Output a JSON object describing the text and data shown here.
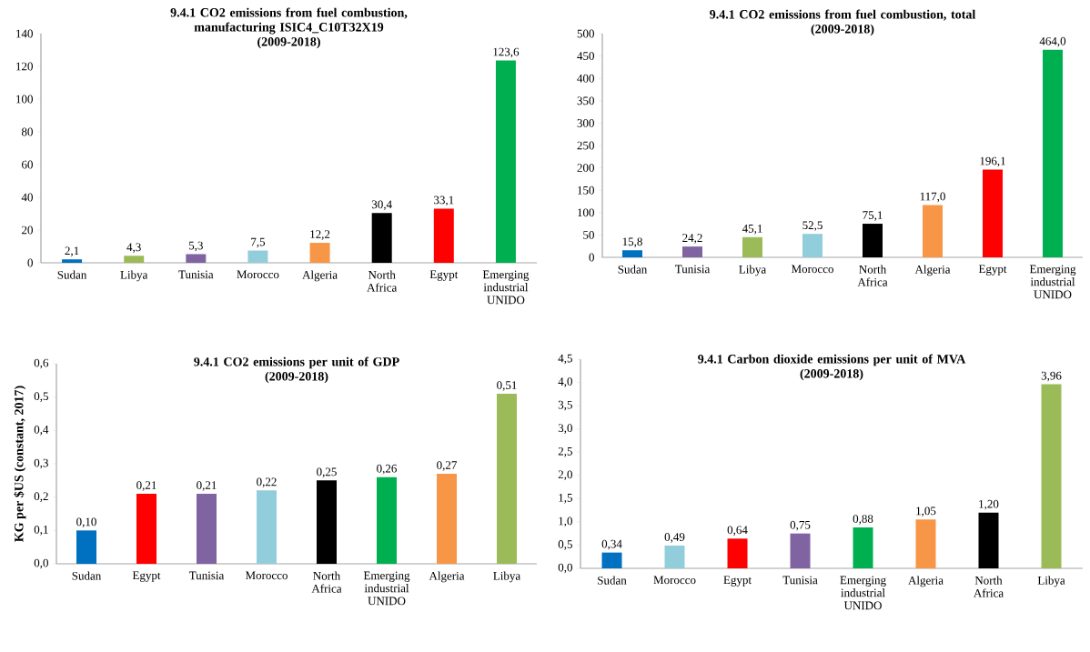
{
  "chart_data": [
    {
      "type": "bar",
      "title": "9.4.1 CO2 emissions from fuel combustion, manufacturing ISIC4_C10T32X19",
      "subtitle": "(2009-2018)",
      "categories": [
        "Sudan",
        "Libya",
        "Tunisia",
        "Morocco",
        "Algeria",
        "North Africa",
        "Egypt",
        "Emerging industrial UNIDO"
      ],
      "values": [
        2.1,
        4.3,
        5.3,
        7.5,
        12.2,
        30.4,
        33.1,
        123.6
      ],
      "value_labels": [
        "2,1",
        "4,3",
        "5,3",
        "7,5",
        "12,2",
        "30,4",
        "33,1",
        "123,6"
      ],
      "colors": [
        "#0070c0",
        "#9bbb59",
        "#8064a2",
        "#92cddc",
        "#f79646",
        "#000000",
        "#ff0000",
        "#00b050"
      ],
      "ylim": [
        0,
        140
      ],
      "yticks": [
        0,
        20,
        40,
        60,
        80,
        100,
        120,
        140
      ]
    },
    {
      "type": "bar",
      "title": "9.4.1 CO2 emissions from fuel combustion, total",
      "subtitle": "(2009-2018)",
      "categories": [
        "Sudan",
        "Tunisia",
        "Libya",
        "Morocco",
        "North Africa",
        "Algeria",
        "Egypt",
        "Emerging industrial UNIDO"
      ],
      "values": [
        15.8,
        24.2,
        45.1,
        52.5,
        75.1,
        117.0,
        196.1,
        464.0
      ],
      "value_labels": [
        "15,8",
        "24,2",
        "45,1",
        "52,5",
        "75,1",
        "117,0",
        "196,1",
        "464,0"
      ],
      "colors": [
        "#0070c0",
        "#8064a2",
        "#9bbb59",
        "#92cddc",
        "#000000",
        "#f79646",
        "#ff0000",
        "#00b050"
      ],
      "ylim": [
        0,
        500
      ],
      "yticks": [
        0,
        50,
        100,
        150,
        200,
        250,
        300,
        350,
        400,
        450,
        500
      ]
    },
    {
      "type": "bar",
      "title": "9.4.1 CO2 emissions per unit of GDP",
      "subtitle": "(2009-2018)",
      "ylabel": "KG per $US (constant, 2017)",
      "categories": [
        "Sudan",
        "Egypt",
        "Tunisia",
        "Morocco",
        "North Africa",
        "Emerging industrial UNIDO",
        "Algeria",
        "Libya"
      ],
      "values": [
        0.1,
        0.21,
        0.21,
        0.22,
        0.25,
        0.26,
        0.27,
        0.51
      ],
      "value_labels": [
        "0,10",
        "0,21",
        "0,21",
        "0,22",
        "0,25",
        "0,26",
        "0,27",
        "0,51"
      ],
      "colors": [
        "#0070c0",
        "#ff0000",
        "#8064a2",
        "#92cddc",
        "#000000",
        "#00b050",
        "#f79646",
        "#9bbb59"
      ],
      "ylim": [
        0,
        0.6
      ],
      "yticks": [
        {
          "value": 0,
          "label": "0,0"
        },
        {
          "value": 0.1,
          "label": "0,1"
        },
        {
          "value": 0.2,
          "label": "0,2"
        },
        {
          "value": 0.3,
          "label": "0,3"
        },
        {
          "value": 0.4,
          "label": "0,4"
        },
        {
          "value": 0.5,
          "label": "0,5"
        },
        {
          "value": 0.6,
          "label": "0,6"
        }
      ]
    },
    {
      "type": "bar",
      "title": "9.4.1 Carbon dioxide emissions per unit of MVA",
      "subtitle": "(2009-2018)",
      "categories": [
        "Sudan",
        "Morocco",
        "Egypt",
        "Tunisia",
        "Emerging industrial UNIDO",
        "Algeria",
        "North Africa",
        "Libya"
      ],
      "values": [
        0.34,
        0.49,
        0.64,
        0.75,
        0.88,
        1.05,
        1.2,
        3.96
      ],
      "value_labels": [
        "0,34",
        "0,49",
        "0,64",
        "0,75",
        "0,88",
        "1,05",
        "1,20",
        "3,96"
      ],
      "colors": [
        "#0070c0",
        "#92cddc",
        "#ff0000",
        "#8064a2",
        "#00b050",
        "#f79646",
        "#000000",
        "#9bbb59"
      ],
      "ylim": [
        0,
        4.5
      ],
      "yticks": [
        {
          "value": 0,
          "label": "0,0"
        },
        {
          "value": 0.5,
          "label": "0,5"
        },
        {
          "value": 1.0,
          "label": "1,0"
        },
        {
          "value": 1.5,
          "label": "1,5"
        },
        {
          "value": 2.0,
          "label": "2,0"
        },
        {
          "value": 2.5,
          "label": "2,5"
        },
        {
          "value": 3.0,
          "label": "3,0"
        },
        {
          "value": 3.5,
          "label": "3,5"
        },
        {
          "value": 4.0,
          "label": "4,0"
        },
        {
          "value": 4.5,
          "label": "4,5"
        }
      ]
    }
  ]
}
